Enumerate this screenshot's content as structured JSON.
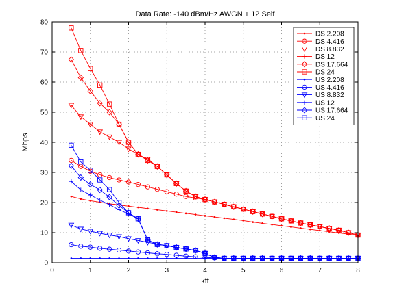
{
  "chart_data": {
    "type": "line",
    "title": "Data Rate: -140 dBm/Hz AWGN + 12 Self",
    "xlabel": "kft",
    "ylabel": "Mbps",
    "xlim": [
      0,
      8
    ],
    "ylim": [
      0,
      80
    ],
    "xticks": [
      "0",
      "1",
      "2",
      "3",
      "4",
      "5",
      "6",
      "7",
      "8"
    ],
    "yticks": [
      "0",
      "10",
      "20",
      "30",
      "40",
      "50",
      "60",
      "70",
      "80"
    ],
    "grid": true,
    "legend": "top-right",
    "x": [
      0.5,
      0.75,
      1.0,
      1.25,
      1.5,
      1.75,
      2.0,
      2.25,
      2.5,
      2.75,
      3.0,
      3.25,
      3.5,
      3.75,
      4.0,
      4.25,
      4.5,
      4.75,
      5.0,
      5.25,
      5.5,
      5.75,
      6.0,
      6.25,
      6.5,
      6.75,
      7.0,
      7.25,
      7.5,
      7.75,
      8.0
    ],
    "series": [
      {
        "name": "DS 2.208",
        "color": "#ff0000",
        "marker": "dot",
        "values": [
          22.0,
          21.2,
          20.6,
          20.1,
          19.6,
          19.2,
          18.8,
          18.4,
          18.0,
          17.6,
          17.2,
          16.8,
          16.4,
          16.0,
          15.6,
          15.2,
          14.8,
          14.4,
          14.0,
          13.5,
          13.1,
          12.7,
          12.3,
          11.9,
          11.5,
          11.1,
          10.7,
          10.3,
          9.9,
          9.5,
          9.1
        ]
      },
      {
        "name": "DS 4.416",
        "color": "#ff0000",
        "marker": "circle",
        "values": [
          34.0,
          32.0,
          30.4,
          29.2,
          28.3,
          27.5,
          26.8,
          26.0,
          25.2,
          24.4,
          23.6,
          22.8,
          22.0,
          21.5,
          21.0,
          20.2,
          19.4,
          18.6,
          17.8,
          17.0,
          16.2,
          15.4,
          14.6,
          13.9,
          13.2,
          12.6,
          12.0,
          11.4,
          10.8,
          10.0,
          9.2
        ]
      },
      {
        "name": "DS 8.832",
        "color": "#ff0000",
        "marker": "triangle-down",
        "values": [
          52.3,
          48.5,
          46.0,
          43.5,
          41.8,
          40.0,
          37.8,
          36.0,
          34.4,
          32.0,
          29.2,
          26.3,
          23.8,
          22.0,
          21.0,
          20.2,
          19.4,
          18.6,
          17.8,
          17.0,
          16.2,
          15.4,
          14.6,
          13.9,
          13.2,
          12.6,
          12.0,
          11.4,
          10.8,
          10.0,
          9.2
        ]
      },
      {
        "name": "DS 12",
        "color": "#ff0000",
        "marker": "plus",
        "values": [
          null,
          null,
          null,
          null,
          null,
          null,
          null,
          null,
          null,
          null,
          null,
          null,
          null,
          null,
          null,
          null,
          null,
          null,
          null,
          null,
          null,
          null,
          null,
          null,
          null,
          null,
          null,
          null,
          null,
          null,
          null
        ]
      },
      {
        "name": "DS 17.664",
        "color": "#ff0000",
        "marker": "diamond",
        "values": [
          67.5,
          61.5,
          57.0,
          53.0,
          50.0,
          46.0,
          40.0,
          36.0,
          34.0,
          32.0,
          29.2,
          26.3,
          23.8,
          22.0,
          21.0,
          20.2,
          19.4,
          18.6,
          17.8,
          17.0,
          16.2,
          15.4,
          14.6,
          13.9,
          13.2,
          12.6,
          12.0,
          11.4,
          10.8,
          10.0,
          9.2
        ]
      },
      {
        "name": "DS 24",
        "color": "#ff0000",
        "marker": "square",
        "values": [
          78.0,
          70.5,
          64.5,
          59.0,
          52.7,
          46.0,
          40.0,
          36.0,
          34.0,
          32.0,
          29.2,
          26.3,
          23.8,
          22.0,
          21.0,
          20.2,
          19.4,
          18.6,
          17.8,
          17.0,
          16.2,
          15.4,
          14.6,
          13.9,
          13.2,
          12.6,
          12.0,
          11.4,
          10.8,
          10.0,
          9.2
        ]
      },
      {
        "name": "US 2.208",
        "color": "#0000ff",
        "marker": "dot",
        "values": [
          1.5,
          1.5,
          1.5,
          1.5,
          1.5,
          1.5,
          1.5,
          1.5,
          1.5,
          1.5,
          1.5,
          1.5,
          1.5,
          1.5,
          1.5,
          1.5,
          1.5,
          1.5,
          1.5,
          1.5,
          1.5,
          1.5,
          1.5,
          1.5,
          1.5,
          1.5,
          1.5,
          1.5,
          1.5,
          1.5,
          1.5
        ]
      },
      {
        "name": "US 4.416",
        "color": "#0000ff",
        "marker": "circle",
        "values": [
          6.0,
          5.5,
          5.2,
          4.8,
          4.5,
          4.2,
          3.9,
          3.6,
          3.3,
          3.0,
          2.8,
          2.5,
          2.2,
          2.0,
          1.8,
          1.6,
          1.5,
          1.5,
          1.5,
          1.5,
          1.5,
          1.5,
          1.5,
          1.5,
          1.5,
          1.5,
          1.5,
          1.5,
          1.5,
          1.5,
          1.5
        ]
      },
      {
        "name": "US 8.832",
        "color": "#0000ff",
        "marker": "triangle-down",
        "values": [
          12.5,
          11.2,
          10.5,
          9.8,
          9.2,
          8.7,
          8.0,
          7.4,
          6.8,
          6.2,
          5.7,
          5.1,
          4.6,
          4.1,
          3.1,
          1.8,
          1.5,
          1.5,
          1.5,
          1.5,
          1.5,
          1.5,
          1.5,
          1.5,
          1.5,
          1.5,
          1.5,
          1.5,
          1.5,
          1.5,
          1.5
        ]
      },
      {
        "name": "US 12",
        "color": "#0000ff",
        "marker": "plus",
        "values": [
          27.0,
          24.2,
          22.5,
          20.8,
          19.3,
          17.6,
          16.2,
          14.6,
          7.6,
          6.1,
          5.7,
          5.1,
          4.6,
          4.1,
          3.1,
          1.8,
          1.5,
          1.5,
          1.5,
          1.5,
          1.5,
          1.5,
          1.5,
          1.5,
          1.5,
          1.5,
          1.5,
          1.5,
          1.5,
          1.5,
          1.5
        ]
      },
      {
        "name": "US 17.664",
        "color": "#0000ff",
        "marker": "diamond",
        "values": [
          32.2,
          28.3,
          26.0,
          24.2,
          21.8,
          19.0,
          16.6,
          14.6,
          7.6,
          6.1,
          5.7,
          5.1,
          4.6,
          4.1,
          3.1,
          1.8,
          1.5,
          1.5,
          1.5,
          1.5,
          1.5,
          1.5,
          1.5,
          1.5,
          1.5,
          1.5,
          1.5,
          1.5,
          1.5,
          1.5,
          1.5
        ]
      },
      {
        "name": "US 24",
        "color": "#0000ff",
        "marker": "square",
        "values": [
          39.0,
          33.5,
          30.7,
          27.5,
          24.3,
          20.0,
          16.6,
          14.6,
          7.6,
          6.1,
          5.7,
          5.1,
          4.6,
          4.1,
          3.1,
          1.8,
          1.5,
          1.5,
          1.5,
          1.5,
          1.5,
          1.5,
          1.5,
          1.5,
          1.5,
          1.5,
          1.5,
          1.5,
          1.5,
          1.5,
          1.5
        ]
      }
    ]
  }
}
